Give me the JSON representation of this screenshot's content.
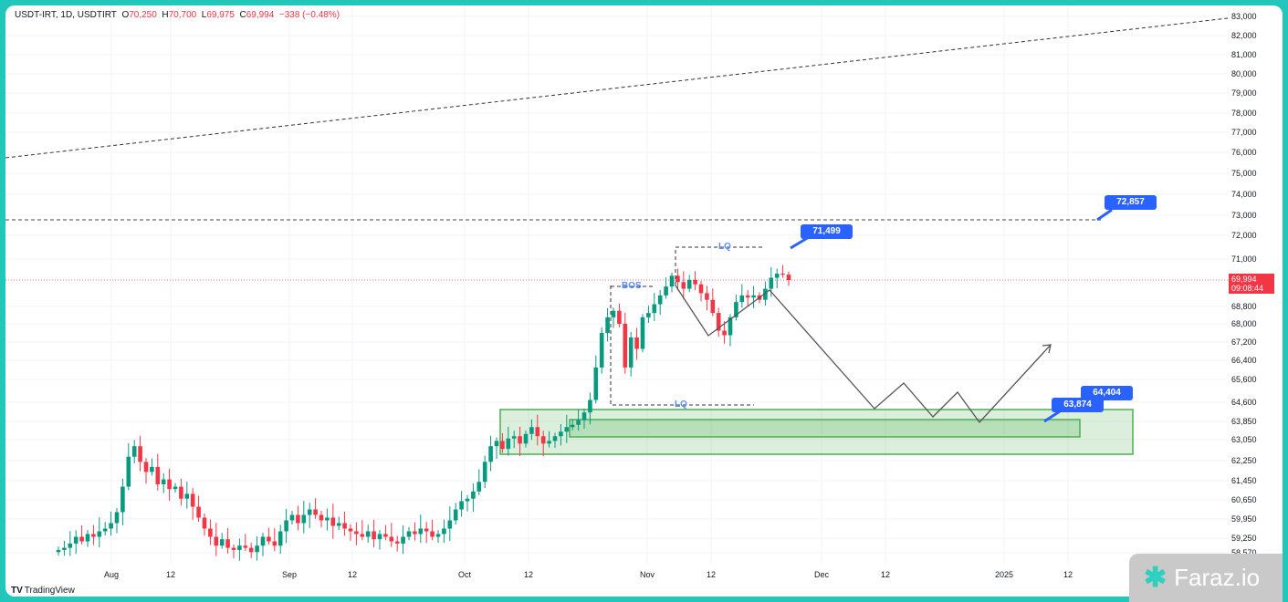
{
  "header": {
    "symbol": "USDT-IRT, 1D, USDTIRT",
    "open_label": "O",
    "open": "70,250",
    "high_label": "H",
    "high": "70,700",
    "low_label": "L",
    "low": "69,975",
    "close_label": "C",
    "close": "69,994",
    "change": "−338 (−0.48%)"
  },
  "price_axis": [
    "83,000",
    "82,000",
    "81,000",
    "80,000",
    "79,000",
    "78,000",
    "77,000",
    "76,000",
    "75,000",
    "74,000",
    "73,000",
    "72,000",
    "71,000",
    "68,800",
    "68,000",
    "67,200",
    "66,400",
    "65,600",
    "64,600",
    "63,850",
    "63,050",
    "62,250",
    "61,450",
    "60,650",
    "59,950",
    "59,250",
    "58,570"
  ],
  "current_price": {
    "value": "69,994",
    "countdown": "09:08:44"
  },
  "time_axis": [
    "Aug",
    "12",
    "Sep",
    "12",
    "Oct",
    "12",
    "Nov",
    "12",
    "Dec",
    "12",
    "2025",
    "12"
  ],
  "annotations": {
    "bos": "BOS",
    "lq_top": "LQ",
    "lq_bottom": "LQ",
    "label_71499": "71,499",
    "label_72857": "72,857",
    "label_64404": "64,404",
    "label_63874": "63,874"
  },
  "branding": {
    "tradingview": "TradingView",
    "watermark": "Faraz.io"
  },
  "colors": {
    "up": "#089981",
    "down": "#f23645",
    "accent": "#2962ff",
    "frame": "#22c7bb"
  },
  "chart_data": {
    "type": "candlestick",
    "symbol": "USDT-IRT",
    "interval": "1D",
    "first_date": "2024-07-22",
    "closes": [
      58700,
      58800,
      59000,
      59300,
      59100,
      59400,
      59300,
      59500,
      59600,
      59800,
      60200,
      61200,
      62400,
      62800,
      62200,
      61800,
      62000,
      61300,
      61500,
      61100,
      61200,
      60700,
      60900,
      60400,
      60000,
      59600,
      59300,
      58900,
      59200,
      58800,
      58700,
      58900,
      58800,
      58600,
      58900,
      59300,
      59100,
      58900,
      59500,
      59900,
      60100,
      59800,
      60100,
      60300,
      60100,
      59900,
      60000,
      59700,
      59800,
      59600,
      59500,
      59400,
      59300,
      59500,
      59200,
      59400,
      59300,
      59100,
      59000,
      59300,
      59500,
      59400,
      59600,
      59500,
      59300,
      59400,
      59600,
      59900,
      60300,
      60600,
      60700,
      61000,
      61400,
      62200,
      62800,
      63000,
      62700,
      63100,
      63200,
      62900,
      63300,
      63600,
      63200,
      62900,
      63000,
      63200,
      63400,
      63600,
      63700,
      63900,
      64200,
      64700,
      66100,
      67600,
      68300,
      68600,
      68000,
      66100,
      67400,
      66900,
      68300,
      68500,
      68900,
      69300,
      69700,
      70200,
      69900,
      69600,
      70000,
      69800,
      69400,
      69100,
      68500,
      67700,
      67500,
      68300,
      69000,
      69300,
      69200,
      69300,
      69100,
      69600,
      70100,
      70300,
      70250,
      69994
    ]
  }
}
